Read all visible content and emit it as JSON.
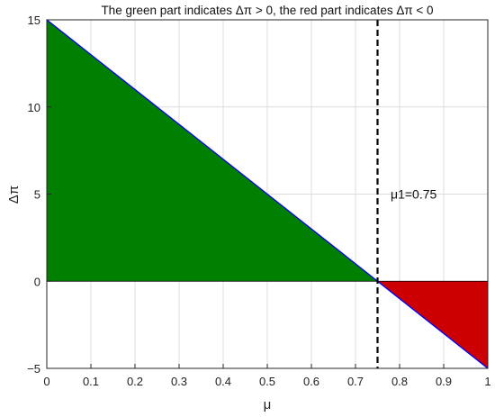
{
  "chart_data": {
    "type": "area",
    "title": "The green part indicates Δπ > 0,  the red part indicates Δπ < 0",
    "xlabel": "μ",
    "ylabel": "Δπ",
    "xlim": [
      0,
      1
    ],
    "ylim": [
      -5,
      15
    ],
    "xticks": [
      0,
      0.1,
      0.2,
      0.3,
      0.4,
      0.5,
      0.6,
      0.7,
      0.8,
      0.9,
      1
    ],
    "xtick_labels": [
      "0",
      "0.1",
      "0.2",
      "0.3",
      "0.4",
      "0.5",
      "0.6",
      "0.7",
      "0.8",
      "0.9",
      "1"
    ],
    "yticks": [
      -5,
      0,
      5,
      10,
      15
    ],
    "ytick_labels": [
      "−5",
      "0",
      "5",
      "10",
      "15"
    ],
    "grid": true,
    "series": [
      {
        "x": [
          0,
          0.75,
          1
        ],
        "y": [
          15,
          0,
          -5
        ],
        "color": "#0000ff"
      }
    ],
    "fill_positive_color": "#007f00",
    "fill_negative_color": "#cc0000",
    "vline": {
      "x": 0.75,
      "style": "dashed",
      "color": "#000000"
    },
    "annotation": {
      "text": "μ1=0.75",
      "x": 0.8,
      "y": 5
    }
  }
}
